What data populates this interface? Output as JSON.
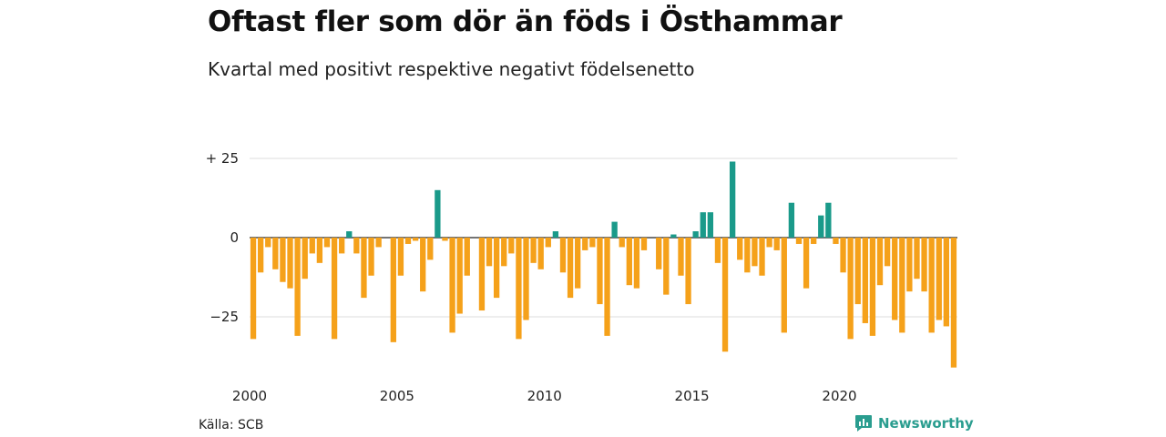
{
  "title": "Oftast fler som dör än föds i Östhammar",
  "subtitle": "Kvartal med positivt respektive negativt födelsenetto",
  "source": "Källa: SCB",
  "brand": "Newsworthy",
  "colors": {
    "positive": "#1a9a8a",
    "negative": "#f5a11a",
    "grid": "#dddddd",
    "zero": "#222222"
  },
  "chart_data": {
    "type": "bar",
    "x_start": 2000,
    "x_step_years": 0.25,
    "values": [
      -32,
      -11,
      -3,
      -10,
      -14,
      -16,
      -31,
      -13,
      -5,
      -8,
      -3,
      -32,
      -5,
      2,
      -5,
      -19,
      -12,
      -3,
      0,
      -33,
      -12,
      -2,
      -1,
      -17,
      -7,
      15,
      -1,
      -30,
      -24,
      -12,
      0,
      -23,
      -9,
      -19,
      -9,
      -5,
      -32,
      -26,
      -8,
      -10,
      -3,
      2,
      -11,
      -19,
      -16,
      -4,
      -3,
      -21,
      -31,
      5,
      -3,
      -15,
      -16,
      -4,
      0,
      -10,
      -18,
      1,
      -12,
      -21,
      2,
      8,
      8,
      -8,
      -36,
      24,
      -7,
      -11,
      -9,
      -12,
      -3,
      -4,
      -30,
      11,
      -2,
      -16,
      -2,
      7,
      11,
      -2,
      -11,
      -32,
      -21,
      -27,
      -31,
      -15,
      -9,
      -26,
      -30,
      -17,
      -13,
      -17,
      -30,
      -26,
      -28,
      -41
    ],
    "y_ticks": [
      25,
      0,
      -25
    ],
    "y_tick_labels": [
      "+ 25",
      "0",
      "−25"
    ],
    "x_ticks": [
      2000,
      2005,
      2010,
      2015,
      2020
    ],
    "x_tick_labels": [
      "2000",
      "2005",
      "2010",
      "2015",
      "2020"
    ],
    "ylim": [
      -43,
      27
    ],
    "grid": true
  }
}
